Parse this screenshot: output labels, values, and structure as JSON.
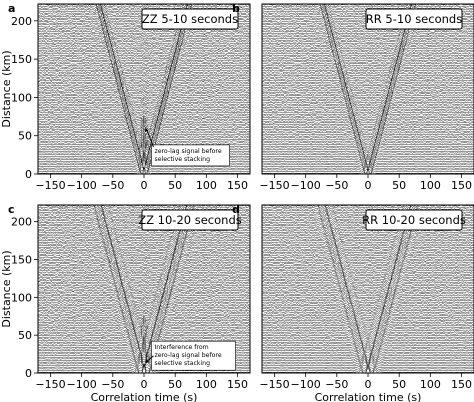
{
  "chart_data": [
    {
      "type": "line",
      "panel_letter": "a",
      "inset_title": "ZZ 5-10 seconds",
      "xlabel": "",
      "ylabel": "Distance (km)",
      "xlim": [
        -170,
        170
      ],
      "ylim": [
        0,
        222
      ],
      "xticks": [
        "−150",
        "−100",
        "−50",
        "0",
        "50",
        "100",
        "150"
      ],
      "yticks": [
        "0",
        "50",
        "100",
        "150",
        "200"
      ],
      "annotation": "zero-lag signal before selective stacking",
      "moveout_velocity_km_s": 3.1,
      "zero_lag_amplitude": 0.45
    },
    {
      "type": "line",
      "panel_letter": "b",
      "inset_title": "RR 5-10 seconds",
      "xlabel": "",
      "ylabel": "",
      "xlim": [
        -170,
        170
      ],
      "ylim": [
        0,
        222
      ],
      "xticks": [
        "−150",
        "−100",
        "−50",
        "0",
        "50",
        "100",
        "150"
      ],
      "yticks": [],
      "annotation": "",
      "moveout_velocity_km_s": 3.1,
      "zero_lag_amplitude": 0
    },
    {
      "type": "line",
      "panel_letter": "c",
      "inset_title": "ZZ 10-20 seconds",
      "xlabel": "Correlation time (s)",
      "ylabel": "Distance (km)",
      "xlim": [
        -170,
        170
      ],
      "ylim": [
        0,
        222
      ],
      "xticks": [
        "−150",
        "−100",
        "−50",
        "0",
        "50",
        "100",
        "150"
      ],
      "yticks": [
        "0",
        "50",
        "100",
        "150",
        "200"
      ],
      "annotation": "Interference from zero-lag signal before selective stacking",
      "moveout_velocity_km_s": 3.1,
      "zero_lag_amplitude": 0.35
    },
    {
      "type": "line",
      "panel_letter": "d",
      "inset_title": "RR 10-20 seconds",
      "xlabel": "Correlation time (s)",
      "ylabel": "",
      "xlim": [
        -170,
        170
      ],
      "ylim": [
        0,
        222
      ],
      "xticks": [
        "−150",
        "−100",
        "−50",
        "0",
        "50",
        "100",
        "150"
      ],
      "yticks": [],
      "annotation": "",
      "moveout_velocity_km_s": 3.1,
      "zero_lag_amplitude": 0
    }
  ]
}
